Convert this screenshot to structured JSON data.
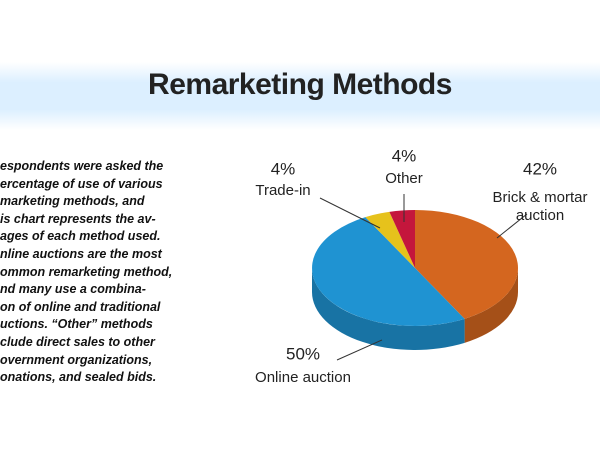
{
  "chart_data": {
    "type": "pie",
    "title": "Remarketing Methods",
    "description": [
      "espondents were asked the",
      "ercentage of use of various",
      "marketing methods, and",
      "is chart represents the av-",
      "ages of each method used.",
      "nline auctions are the most",
      "ommon remarketing method,",
      "nd many use a combina-",
      "on of online and traditional",
      "uctions. “Other” methods",
      "clude direct sales to other",
      "overnment organizations,",
      "onations, and sealed bids."
    ],
    "categories": [
      "Brick & mortar auction",
      "Online auction",
      "Trade-in",
      "Other"
    ],
    "values": [
      42,
      50,
      4,
      4
    ],
    "value_labels": [
      "42%",
      "50%",
      "4%",
      "4%"
    ],
    "colors": [
      "#d4661f",
      "#1f93d2",
      "#e6c21c",
      "#c4163c"
    ]
  }
}
